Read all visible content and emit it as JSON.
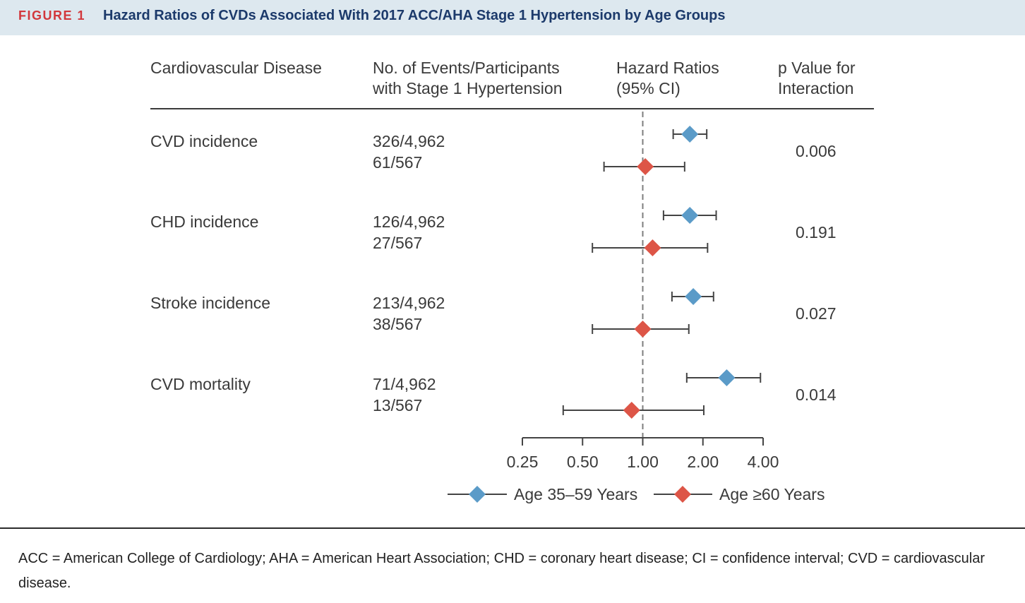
{
  "header": {
    "figure_label": "FIGURE 1",
    "title": "Hazard Ratios of CVDs Associated With 2017 ACC/AHA Stage 1 Hypertension by Age Groups"
  },
  "columns": {
    "disease": "Cardiovascular Disease",
    "events_line1": "No. of Events/Participants",
    "events_line2": "with Stage 1 Hypertension",
    "hr_line1": "Hazard Ratios",
    "hr_line2": "(95% CI)",
    "p_line1": "p Value for",
    "p_line2": "Interaction"
  },
  "rows": [
    {
      "disease": "CVD incidence",
      "young_count": "326/4,962",
      "old_count": "61/567",
      "p_value": "0.006"
    },
    {
      "disease": "CHD incidence",
      "young_count": "126/4,962",
      "old_count": "27/567",
      "p_value": "0.191"
    },
    {
      "disease": "Stroke incidence",
      "young_count": "213/4,962",
      "old_count": "38/567",
      "p_value": "0.027"
    },
    {
      "disease": "CVD mortality",
      "young_count": "71/4,962",
      "old_count": "13/567",
      "p_value": "0.014"
    }
  ],
  "chart_data": {
    "type": "forest",
    "x_scale": "log2",
    "xlim": [
      0.25,
      4.0
    ],
    "x_ticks": [
      "0.25",
      "0.50",
      "1.00",
      "2.00",
      "4.00"
    ],
    "reference_line": 1.0,
    "series": [
      {
        "name": "Age 35-59 Years",
        "color": "#5b9bc8",
        "points": [
          {
            "category": "CVD incidence",
            "hr": 1.72,
            "lo": 1.42,
            "hi": 2.09
          },
          {
            "category": "CHD incidence",
            "hr": 1.72,
            "lo": 1.27,
            "hi": 2.33
          },
          {
            "category": "Stroke incidence",
            "hr": 1.79,
            "lo": 1.4,
            "hi": 2.26
          },
          {
            "category": "CVD mortality",
            "hr": 2.63,
            "lo": 1.66,
            "hi": 3.88
          }
        ]
      },
      {
        "name": "Age ≥60 Years",
        "color": "#dd5547",
        "points": [
          {
            "category": "CVD incidence",
            "hr": 1.03,
            "lo": 0.64,
            "hi": 1.62
          },
          {
            "category": "CHD incidence",
            "hr": 1.12,
            "lo": 0.56,
            "hi": 2.11
          },
          {
            "category": "Stroke incidence",
            "hr": 1.0,
            "lo": 0.56,
            "hi": 1.7
          },
          {
            "category": "CVD mortality",
            "hr": 0.88,
            "lo": 0.4,
            "hi": 2.02
          }
        ]
      }
    ],
    "legend": [
      "Age 35–59 Years",
      "Age ≥60 Years"
    ]
  },
  "footnote": "ACC = American College of Cardiology; AHA = American Heart Association; CHD = coronary heart disease; CI = confidence interval; CVD = cardiovascular disease."
}
